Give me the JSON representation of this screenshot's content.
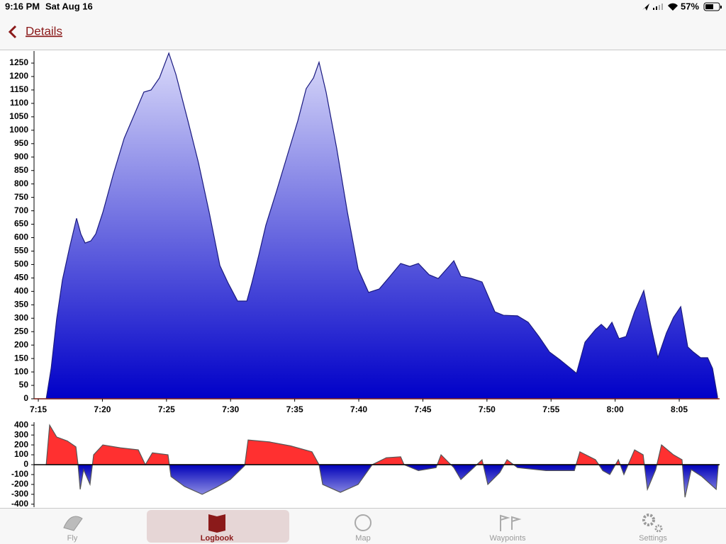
{
  "status_bar": {
    "time": "9:16 PM",
    "date": "Sat Aug 16",
    "battery": "57%"
  },
  "nav": {
    "back": "Details"
  },
  "chart_data": [
    {
      "type": "area",
      "color": "#0000c8",
      "gradient_top": "#dcdcfa",
      "line_color": "#1a1a80",
      "x": [
        "7:14:40",
        "7:15:37",
        "7:16:00",
        "7:16:26",
        "7:16:53",
        "7:17:26",
        "7:17:59",
        "7:18:19",
        "7:18:39",
        "7:19:06",
        "7:19:29",
        "7:20:02",
        "7:20:52",
        "7:21:42",
        "7:22:25",
        "7:23:14",
        "7:23:48",
        "7:24:27",
        "7:25:11",
        "7:25:44",
        "7:26:40",
        "7:27:30",
        "7:28:20",
        "7:29:10",
        "7:29:49",
        "7:30:33",
        "7:31:16",
        "7:31:39",
        "7:32:12",
        "7:32:45",
        "7:33:35",
        "7:34:25",
        "7:35:15",
        "7:35:54",
        "7:36:28",
        "7:36:54",
        "7:37:27",
        "7:38:17",
        "7:39:07",
        "7:39:57",
        "7:40:46",
        "7:41:36",
        "7:42:26",
        "7:43:16",
        "7:43:59",
        "7:44:39",
        "7:45:29",
        "7:46:12",
        "7:46:51",
        "7:47:25",
        "7:47:58",
        "7:48:48",
        "7:49:37",
        "7:50:37",
        "7:51:17",
        "7:52:23",
        "7:53:13",
        "7:54:03",
        "7:54:53",
        "7:55:42",
        "7:56:32",
        "7:56:59",
        "7:57:39",
        "7:58:28",
        "7:58:55",
        "7:59:21",
        "7:59:45",
        "8:00:18",
        "8:00:51",
        "8:01:31",
        "8:02:14",
        "8:02:47",
        "8:03:20",
        "8:04:00",
        "8:04:33",
        "8:05:07",
        "8:05:40",
        "8:06:06",
        "8:06:40",
        "8:07:13",
        "8:07:36",
        "8:07:59"
      ],
      "values": [
        0,
        0,
        113,
        298,
        443,
        562,
        672,
        614,
        580,
        588,
        614,
        694,
        839,
        970,
        1050,
        1142,
        1150,
        1195,
        1287,
        1208,
        1036,
        878,
        694,
        496,
        430,
        364,
        364,
        430,
        535,
        646,
        773,
        905,
        1036,
        1155,
        1195,
        1253,
        1142,
        931,
        694,
        483,
        396,
        409,
        456,
        504,
        493,
        504,
        462,
        448,
        483,
        514,
        456,
        448,
        435,
        324,
        311,
        309,
        285,
        232,
        174,
        145,
        113,
        95,
        211,
        258,
        277,
        258,
        285,
        224,
        232,
        324,
        403,
        272,
        153,
        245,
        303,
        343,
        193,
        174,
        153,
        153,
        113,
        8
      ],
      "xlim": [
        "7:14:40",
        "8:08:09"
      ],
      "xticks": [
        "7:15",
        "7:20",
        "7:25",
        "7:30",
        "7:35",
        "7:40",
        "7:45",
        "7:50",
        "7:55",
        "8:00",
        "8:05"
      ],
      "ylim": [
        0,
        1295
      ],
      "yticks": [
        0,
        50,
        100,
        150,
        200,
        250,
        300,
        350,
        400,
        450,
        500,
        550,
        600,
        650,
        700,
        750,
        800,
        850,
        900,
        950,
        1000,
        1050,
        1100,
        1150,
        1200,
        1250
      ]
    },
    {
      "type": "area",
      "color": "#ff3030",
      "negative_color": "#0000b8",
      "negative_fade_color": "#c8c8f4",
      "line_color": "#555555",
      "x": [
        "7:15:37",
        "7:15:53",
        "7:16:26",
        "7:17:16",
        "7:17:56",
        "7:18:06",
        "7:18:16",
        "7:18:32",
        "7:19:02",
        "7:19:19",
        "7:20:02",
        "7:21:25",
        "7:22:48",
        "7:23:21",
        "7:23:54",
        "7:25:07",
        "7:25:21",
        "7:26:24",
        "7:27:47",
        "7:28:53",
        "7:29:59",
        "7:31:06",
        "7:31:22",
        "7:33:02",
        "7:34:41",
        "7:36:21",
        "7:36:54",
        "7:37:11",
        "7:38:34",
        "7:39:57",
        "7:41:03",
        "7:42:09",
        "7:43:16",
        "7:43:32",
        "7:44:39",
        "7:46:02",
        "7:46:25",
        "7:47:25",
        "7:47:58",
        "7:48:58",
        "7:49:37",
        "7:50:04",
        "7:51:00",
        "7:51:34",
        "7:52:23",
        "7:54:36",
        "7:56:49",
        "7:57:15",
        "7:58:28",
        "7:59:02",
        "7:59:35",
        "8:00:15",
        "8:00:41",
        "8:01:31",
        "8:02:11",
        "8:02:31",
        "8:03:10",
        "8:03:37",
        "8:04:33",
        "8:05:13",
        "8:05:27",
        "8:05:56",
        "8:06:46",
        "8:07:53",
        "8:08:03"
      ],
      "values": [
        0,
        400,
        280,
        240,
        180,
        0,
        -250,
        -50,
        -200,
        100,
        200,
        170,
        150,
        0,
        120,
        100,
        -120,
        -220,
        -300,
        -230,
        -150,
        -10,
        250,
        230,
        190,
        130,
        0,
        -200,
        -280,
        -200,
        0,
        70,
        80,
        0,
        -60,
        -30,
        100,
        -30,
        -150,
        -30,
        50,
        -200,
        -80,
        50,
        -30,
        -60,
        -60,
        130,
        50,
        -60,
        -100,
        50,
        -100,
        150,
        100,
        -250,
        -50,
        200,
        100,
        50,
        -330,
        -50,
        -120,
        -250,
        0
      ],
      "xlim": [
        "7:14:40",
        "8:08:09"
      ],
      "ylim": [
        -430,
        430
      ],
      "yticks": [
        -400,
        -300,
        -200,
        -100,
        0,
        100,
        200,
        300,
        400
      ]
    }
  ],
  "tabs": [
    "Fly",
    "Logbook",
    "Map",
    "Waypoints",
    "Settings"
  ]
}
